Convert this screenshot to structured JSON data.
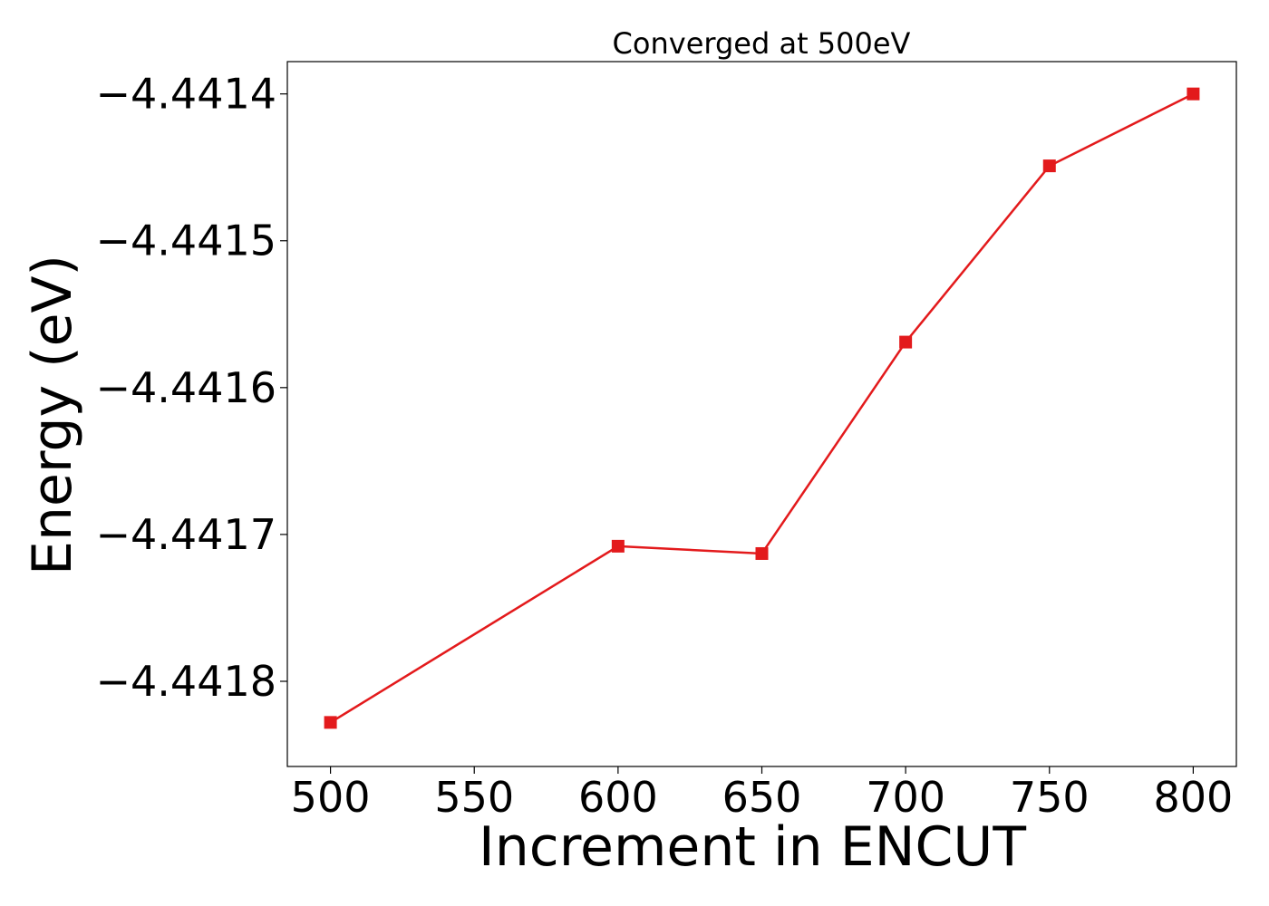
{
  "chart_data": {
    "type": "line",
    "title": "Converged at 500eV",
    "xlabel": "Increment in ENCUT",
    "ylabel": "Energy (eV)",
    "x": [
      500,
      600,
      650,
      700,
      750,
      800
    ],
    "series": [
      {
        "values": [
          -4.441828,
          -4.441708,
          -4.441713,
          -4.441569,
          -4.441449,
          -4.4414
        ],
        "color": "#e31a1c",
        "marker": "square"
      }
    ],
    "xticks": [
      "500",
      "550",
      "600",
      "650",
      "700",
      "750",
      "800"
    ],
    "xtick_values": [
      500,
      550,
      600,
      650,
      700,
      750,
      800
    ],
    "yticks": [
      "−4.4414",
      "−4.4415",
      "−4.4416",
      "−4.4417",
      "−4.4418"
    ],
    "ytick_values": [
      -4.4414,
      -4.4415,
      -4.4416,
      -4.4417,
      -4.4418
    ],
    "xlim": [
      485,
      815
    ],
    "ylim": [
      -4.441858,
      -4.441378
    ],
    "grid": false,
    "legend": "none"
  }
}
